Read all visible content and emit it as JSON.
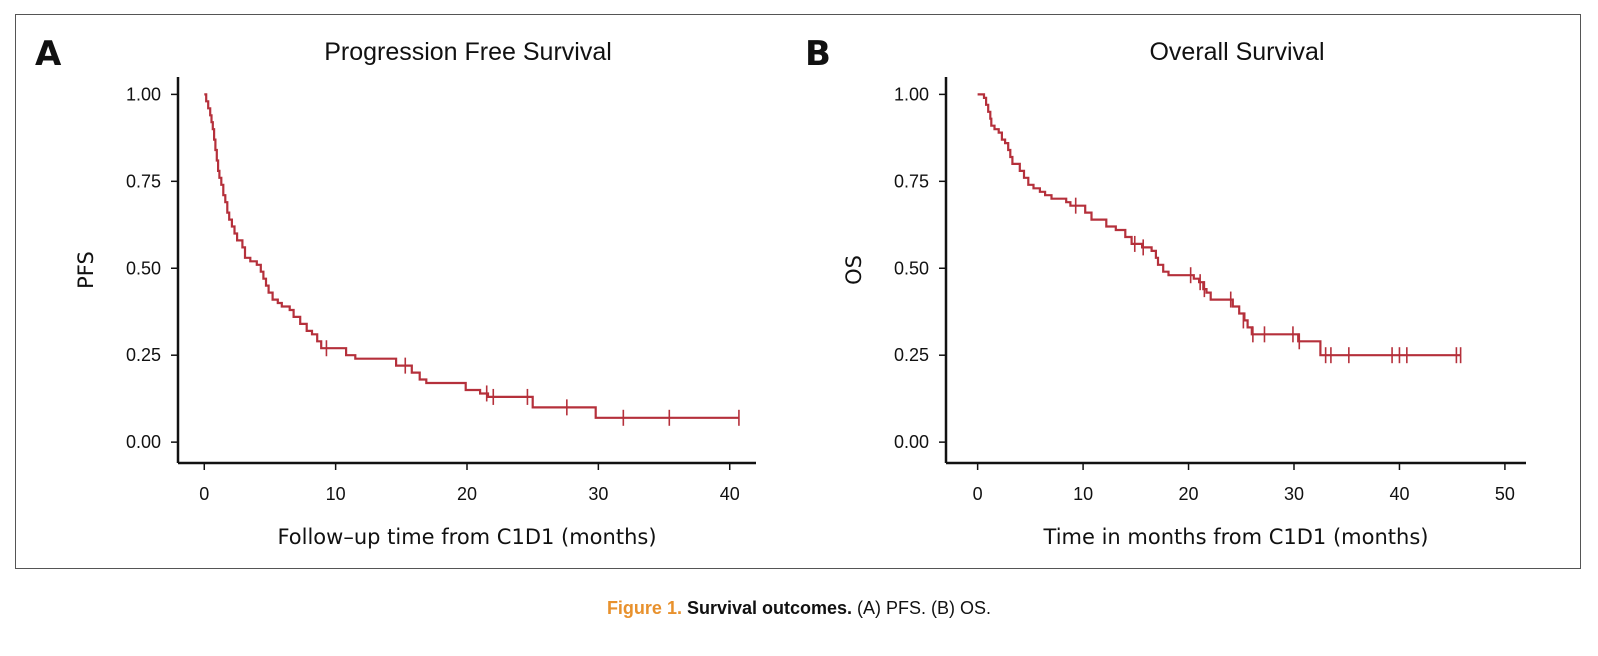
{
  "chart_data": [
    {
      "type": "line",
      "panel": "A",
      "title": "Progression Free Survival",
      "xlabel": "Follow–up time from C1D1 (months)",
      "ylabel": "PFS",
      "xlim": [
        -2,
        42
      ],
      "ylim": [
        -0.06,
        1.05
      ],
      "xticks": [
        0,
        10,
        20,
        30,
        40
      ],
      "yticks": [
        "0.00",
        "0.25",
        "0.50",
        "0.75",
        "1.00"
      ],
      "color": "#b5303b",
      "series": [
        {
          "steps": [
            [
              0,
              1.0
            ],
            [
              0.15,
              0.98
            ],
            [
              0.3,
              0.96
            ],
            [
              0.45,
              0.94
            ],
            [
              0.55,
              0.92
            ],
            [
              0.65,
              0.9
            ],
            [
              0.75,
              0.87
            ],
            [
              0.85,
              0.84
            ],
            [
              0.95,
              0.81
            ],
            [
              1.05,
              0.78
            ],
            [
              1.15,
              0.76
            ],
            [
              1.3,
              0.74
            ],
            [
              1.45,
              0.71
            ],
            [
              1.6,
              0.69
            ],
            [
              1.75,
              0.66
            ],
            [
              1.9,
              0.64
            ],
            [
              2.1,
              0.62
            ],
            [
              2.3,
              0.6
            ],
            [
              2.5,
              0.58
            ],
            [
              2.9,
              0.56
            ],
            [
              3.1,
              0.53
            ],
            [
              3.5,
              0.52
            ],
            [
              4.0,
              0.51
            ],
            [
              4.3,
              0.49
            ],
            [
              4.5,
              0.47
            ],
            [
              4.7,
              0.45
            ],
            [
              4.9,
              0.43
            ],
            [
              5.2,
              0.41
            ],
            [
              5.6,
              0.4
            ],
            [
              5.9,
              0.39
            ],
            [
              6.5,
              0.38
            ],
            [
              6.8,
              0.36
            ],
            [
              7.3,
              0.34
            ],
            [
              7.8,
              0.32
            ],
            [
              8.2,
              0.31
            ],
            [
              8.6,
              0.29
            ],
            [
              8.9,
              0.27
            ],
            [
              10.8,
              0.25
            ],
            [
              11.5,
              0.24
            ],
            [
              14.6,
              0.22
            ],
            [
              15.8,
              0.2
            ],
            [
              16.4,
              0.18
            ],
            [
              16.9,
              0.17
            ],
            [
              19.9,
              0.15
            ],
            [
              21.0,
              0.14
            ],
            [
              21.6,
              0.13
            ],
            [
              25.0,
              0.1
            ],
            [
              29.8,
              0.07
            ],
            [
              40.7,
              0.07
            ]
          ],
          "censored": [
            [
              9.3,
              0.27
            ],
            [
              15.3,
              0.22
            ],
            [
              21.5,
              0.14
            ],
            [
              22.0,
              0.13
            ],
            [
              24.6,
              0.13
            ],
            [
              27.6,
              0.1
            ],
            [
              31.9,
              0.07
            ],
            [
              35.4,
              0.07
            ],
            [
              40.7,
              0.07
            ]
          ]
        }
      ]
    },
    {
      "type": "line",
      "panel": "B",
      "title": "Overall Survival",
      "xlabel": "Time in months from C1D1 (months)",
      "ylabel": "OS",
      "xlim": [
        -3,
        52
      ],
      "ylim": [
        -0.06,
        1.05
      ],
      "xticks": [
        0,
        10,
        20,
        30,
        40,
        50
      ],
      "yticks": [
        "0.00",
        "0.25",
        "0.50",
        "0.75",
        "1.00"
      ],
      "color": "#b5303b",
      "series": [
        {
          "steps": [
            [
              0,
              1.0
            ],
            [
              0.6,
              0.99
            ],
            [
              0.8,
              0.97
            ],
            [
              1.0,
              0.95
            ],
            [
              1.2,
              0.93
            ],
            [
              1.3,
              0.91
            ],
            [
              1.6,
              0.9
            ],
            [
              2.0,
              0.89
            ],
            [
              2.3,
              0.87
            ],
            [
              2.6,
              0.86
            ],
            [
              2.9,
              0.84
            ],
            [
              3.1,
              0.82
            ],
            [
              3.3,
              0.8
            ],
            [
              4.0,
              0.78
            ],
            [
              4.4,
              0.76
            ],
            [
              4.8,
              0.74
            ],
            [
              5.3,
              0.73
            ],
            [
              5.9,
              0.72
            ],
            [
              6.4,
              0.71
            ],
            [
              7.0,
              0.7
            ],
            [
              8.4,
              0.69
            ],
            [
              8.8,
              0.68
            ],
            [
              10.2,
              0.66
            ],
            [
              10.8,
              0.64
            ],
            [
              12.2,
              0.62
            ],
            [
              13.1,
              0.61
            ],
            [
              14.0,
              0.59
            ],
            [
              14.6,
              0.57
            ],
            [
              15.6,
              0.56
            ],
            [
              16.5,
              0.55
            ],
            [
              16.9,
              0.53
            ],
            [
              17.1,
              0.51
            ],
            [
              17.6,
              0.49
            ],
            [
              18.1,
              0.48
            ],
            [
              20.5,
              0.47
            ],
            [
              21.0,
              0.46
            ],
            [
              21.4,
              0.44
            ],
            [
              21.7,
              0.43
            ],
            [
              22.1,
              0.41
            ],
            [
              24.2,
              0.39
            ],
            [
              24.8,
              0.37
            ],
            [
              25.3,
              0.35
            ],
            [
              25.6,
              0.33
            ],
            [
              26.0,
              0.31
            ],
            [
              30.4,
              0.29
            ],
            [
              32.5,
              0.25
            ],
            [
              45.8,
              0.25
            ]
          ],
          "censored": [
            [
              9.3,
              0.68
            ],
            [
              14.9,
              0.57
            ],
            [
              15.7,
              0.56
            ],
            [
              20.2,
              0.48
            ],
            [
              21.1,
              0.46
            ],
            [
              21.5,
              0.44
            ],
            [
              24.0,
              0.41
            ],
            [
              25.2,
              0.35
            ],
            [
              26.1,
              0.31
            ],
            [
              27.2,
              0.31
            ],
            [
              29.9,
              0.31
            ],
            [
              30.5,
              0.29
            ],
            [
              33.0,
              0.25
            ],
            [
              33.5,
              0.25
            ],
            [
              35.2,
              0.25
            ],
            [
              39.3,
              0.25
            ],
            [
              40.0,
              0.25
            ],
            [
              40.7,
              0.25
            ],
            [
              45.4,
              0.25
            ],
            [
              45.8,
              0.25
            ]
          ]
        }
      ]
    }
  ],
  "caption": {
    "number": "Figure 1.",
    "title": "Survival outcomes.",
    "description": "(A) PFS. (B) OS."
  }
}
